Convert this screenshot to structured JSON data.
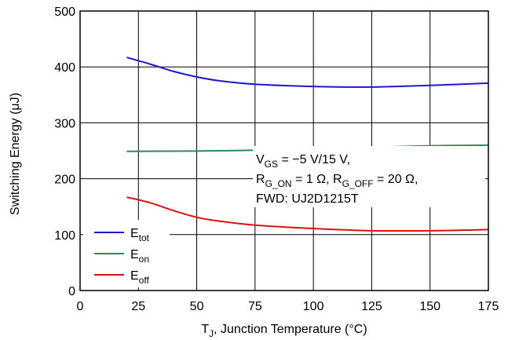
{
  "chart_data": {
    "type": "line",
    "xlabel": {
      "main": "T",
      "sub": "J",
      "rest": ", Junction Temperature (°C)"
    },
    "ylabel": "Switching Energy (μJ)",
    "xlim": [
      0,
      175
    ],
    "ylim": [
      0,
      500
    ],
    "xticks": [
      0,
      25,
      50,
      75,
      100,
      125,
      150,
      175
    ],
    "yticks": [
      0,
      100,
      200,
      300,
      400,
      500
    ],
    "grid": true,
    "legend_position": "bottom-left",
    "series": [
      {
        "name": {
          "main": "E",
          "sub": "tot"
        },
        "color": "#1a1acc",
        "x": [
          20,
          30,
          40,
          50,
          60,
          75,
          100,
          125,
          150,
          175
        ],
        "y": [
          417,
          405,
          392,
          382,
          375,
          369,
          365,
          364,
          367,
          371
        ]
      },
      {
        "name": {
          "main": "E",
          "sub": "on"
        },
        "color": "#2e8b57",
        "x": [
          20,
          50,
          75,
          100,
          125,
          150,
          175
        ],
        "y": [
          249,
          249.5,
          251,
          253,
          256,
          259,
          260
        ]
      },
      {
        "name": {
          "main": "E",
          "sub": "off"
        },
        "color": "#e01010",
        "x": [
          20,
          30,
          40,
          50,
          60,
          75,
          100,
          125,
          150,
          175
        ],
        "y": [
          167,
          157,
          143,
          131,
          124,
          117,
          111,
          107,
          107,
          109
        ]
      }
    ],
    "annotation": {
      "line1": [
        {
          "t": "V"
        },
        {
          "t": "GS",
          "sub": true
        },
        {
          "t": " = −5 V/15 V,"
        }
      ],
      "line2": [
        {
          "t": "R"
        },
        {
          "t": "G_ON",
          "sub": true
        },
        {
          "t": " = 1 Ω, R"
        },
        {
          "t": "G_OFF",
          "sub": true
        },
        {
          "t": " = 20 Ω,"
        }
      ],
      "line3": [
        {
          "t": "FWD: UJ2D1215T"
        }
      ]
    }
  }
}
